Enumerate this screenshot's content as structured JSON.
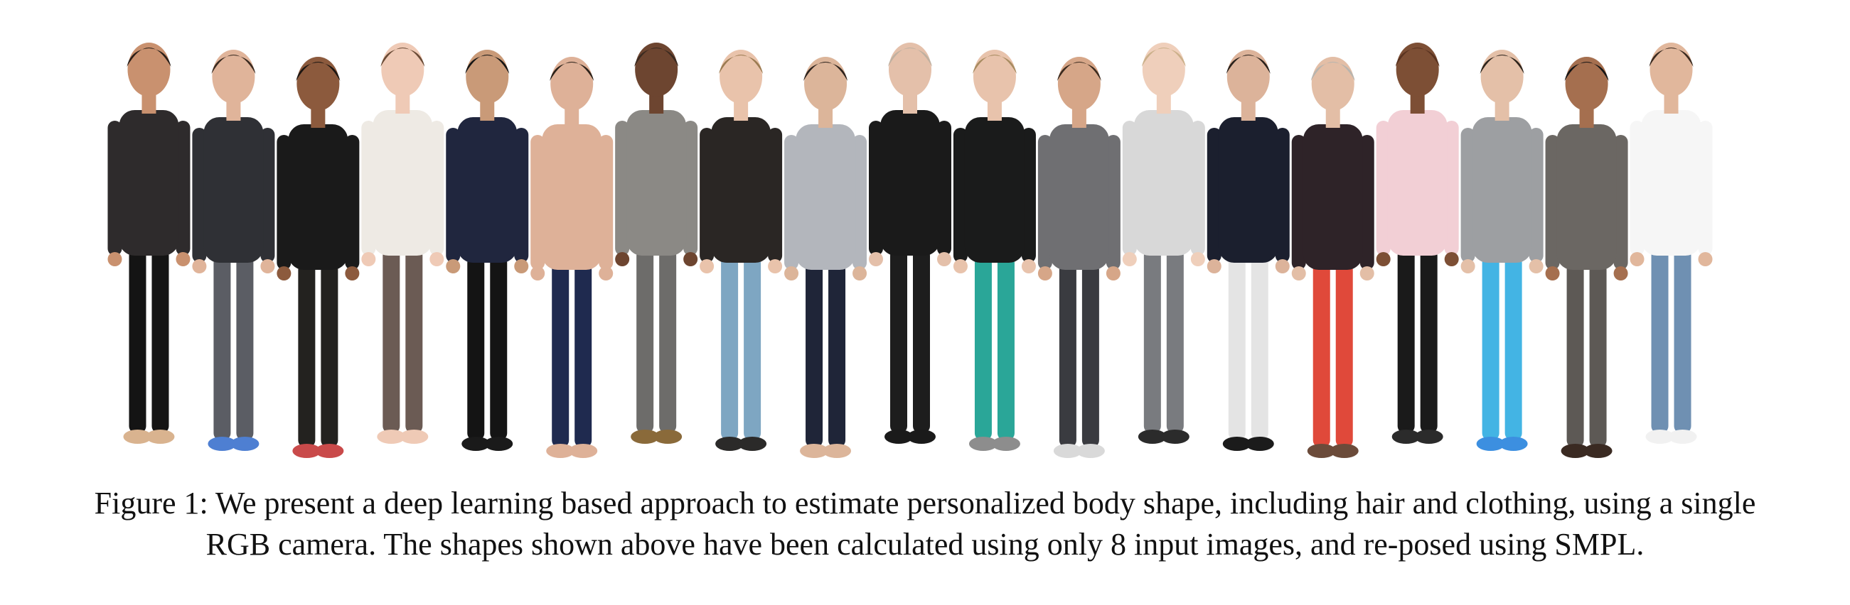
{
  "figure": {
    "image_alt": "Rendered 3D avatars of people standing in a row",
    "caption_lines": [
      "Figure 1: We present a deep learning based approach to estimate personalized body shape, including hair and clothing, using a single",
      "RGB camera. The shapes shown above have been calculated using only 8 input images, and re-posed using SMPL."
    ],
    "avatars": [
      {
        "skin": "#c9916f",
        "hair": "#2a1f19",
        "top": "#2e2b2c",
        "bottom": "#141414",
        "shoes": "#d9b38f"
      },
      {
        "skin": "#e0b49a",
        "hair": "#3a2a20",
        "top": "#2f3035",
        "bottom": "#5b5d64",
        "shoes": "#4e7fd2"
      },
      {
        "skin": "#8c5a3d",
        "hair": "#1c1612",
        "top": "#1a1a1a",
        "bottom": "#23221f",
        "shoes": "#c94a4a"
      },
      {
        "skin": "#efcab6",
        "hair": "#6a4b36",
        "top": "#eeeae4",
        "bottom": "#6b5b54",
        "shoes": "#efcab6"
      },
      {
        "skin": "#c99a78",
        "hair": "#151515",
        "top": "#20263e",
        "bottom": "#141414",
        "shoes": "#1a1a1a"
      },
      {
        "skin": "#deb198",
        "hair": "#2b2119",
        "top": "#deb198",
        "bottom": "#1f2a4f",
        "shoes": "#deb198"
      },
      {
        "skin": "#6d4530",
        "hair": "#3b2a20",
        "top": "#8b8985",
        "bottom": "#6d6c6a",
        "shoes": "#8a6a3a"
      },
      {
        "skin": "#e9c3ab",
        "hair": "#9b7b52",
        "top": "#2a2624",
        "bottom": "#7ea6c2",
        "shoes": "#2b2a29"
      },
      {
        "skin": "#dcb59a",
        "hair": "#2d231d",
        "top": "#b3b6bc",
        "bottom": "#1f2538",
        "shoes": "#dcb59a"
      },
      {
        "skin": "#e4c0aa",
        "hair": "#bfb0a0",
        "top": "#1a1a1a",
        "bottom": "#1d1d1d",
        "shoes": "#1a1a1a"
      },
      {
        "skin": "#e8c3ac",
        "hair": "#a78b60",
        "top": "#1a1b1b",
        "bottom": "#2aa698",
        "shoes": "#8d8d8d"
      },
      {
        "skin": "#d6a688",
        "hair": "#3a2a1e",
        "top": "#6f6f72",
        "bottom": "#3a3b40",
        "shoes": "#d9d9d9"
      },
      {
        "skin": "#efcfbb",
        "hair": "#cbb08a",
        "top": "#d8d8d8",
        "bottom": "#797b7f",
        "shoes": "#2b2b2b"
      },
      {
        "skin": "#dcb39a",
        "hair": "#2a211b",
        "top": "#1b1f2e",
        "bottom": "#e4e4e4",
        "shoes": "#1b1b1b"
      },
      {
        "skin": "#e3bea6",
        "hair": "#b8b4ae",
        "top": "#2e2328",
        "bottom": "#e0493a",
        "shoes": "#6b4b3a"
      },
      {
        "skin": "#7d4f35",
        "hair": "#5a3320",
        "top": "#f2cfd5",
        "bottom": "#1a1a1a",
        "shoes": "#2b2b2b"
      },
      {
        "skin": "#e4c0a8",
        "hair": "#2e241c",
        "top": "#9d9fa2",
        "bottom": "#43b4e4",
        "shoes": "#3c8fe0"
      },
      {
        "skin": "#a56f4f",
        "hair": "#151515",
        "top": "#6b6763",
        "bottom": "#5d5955",
        "shoes": "#3a2a22"
      },
      {
        "skin": "#e1b79c",
        "hair": "#3b2b20",
        "top": "#f6f6f6",
        "bottom": "#6f90b2",
        "shoes": "#f1f1f1"
      }
    ]
  }
}
